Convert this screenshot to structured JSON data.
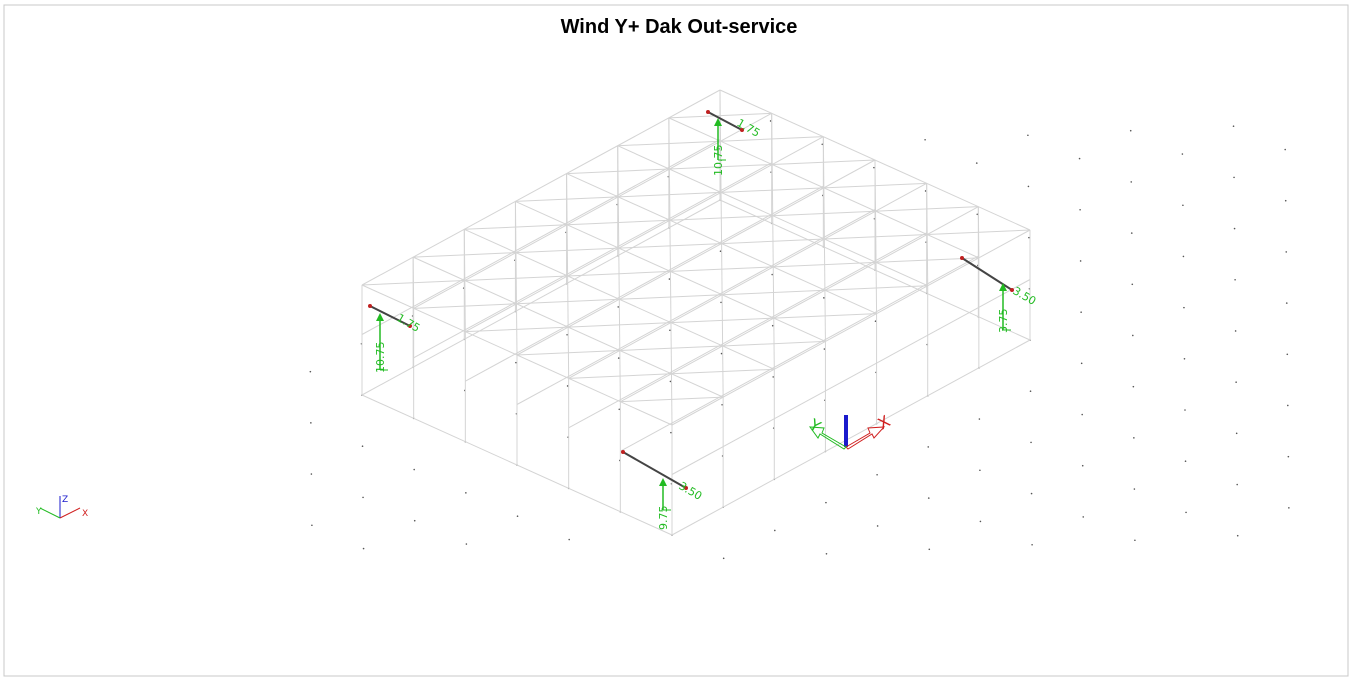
{
  "title": "Wind Y+ Dak Out-service",
  "loads": [
    {
      "force": "1.75",
      "height": "10.75"
    },
    {
      "force": "3.50",
      "height": "3.75"
    },
    {
      "force": "1.75",
      "height": "10.75"
    },
    {
      "force": "3.50",
      "height": "9.75"
    }
  ],
  "axes": {
    "x": "X",
    "y": "Y",
    "z": "Z"
  }
}
